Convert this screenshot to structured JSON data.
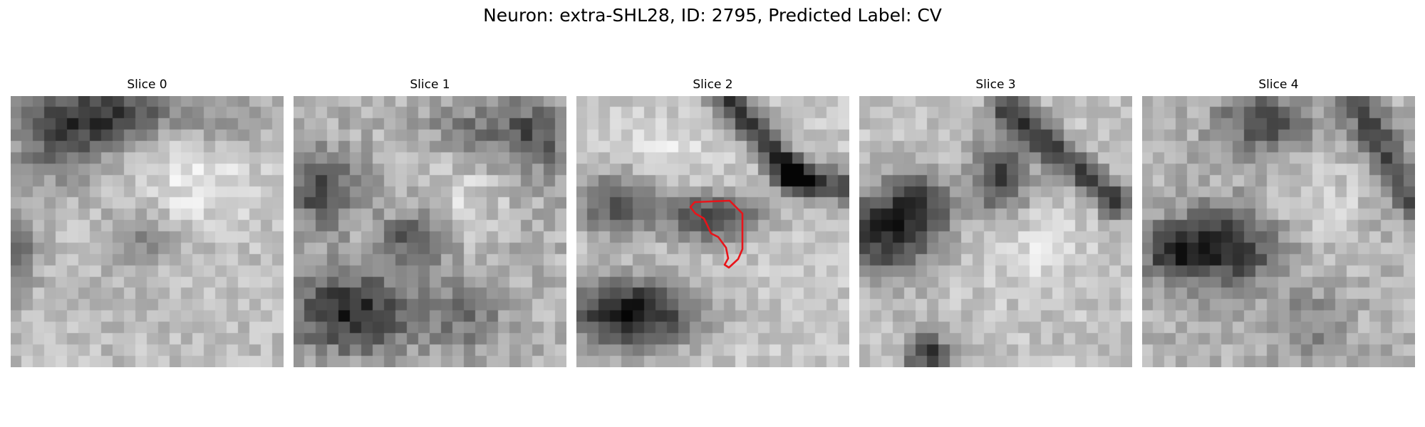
{
  "figure": {
    "title": "Neuron: extra-SHL28, ID: 2795, Predicted Label: CV"
  },
  "colormap": "gray",
  "grid_size": 24,
  "outline_color": "#e8141a",
  "panels": [
    {
      "title": "Slice 0"
    },
    {
      "title": "Slice 1"
    },
    {
      "title": "Slice 2"
    },
    {
      "title": "Slice 3"
    },
    {
      "title": "Slice 4"
    }
  ]
}
